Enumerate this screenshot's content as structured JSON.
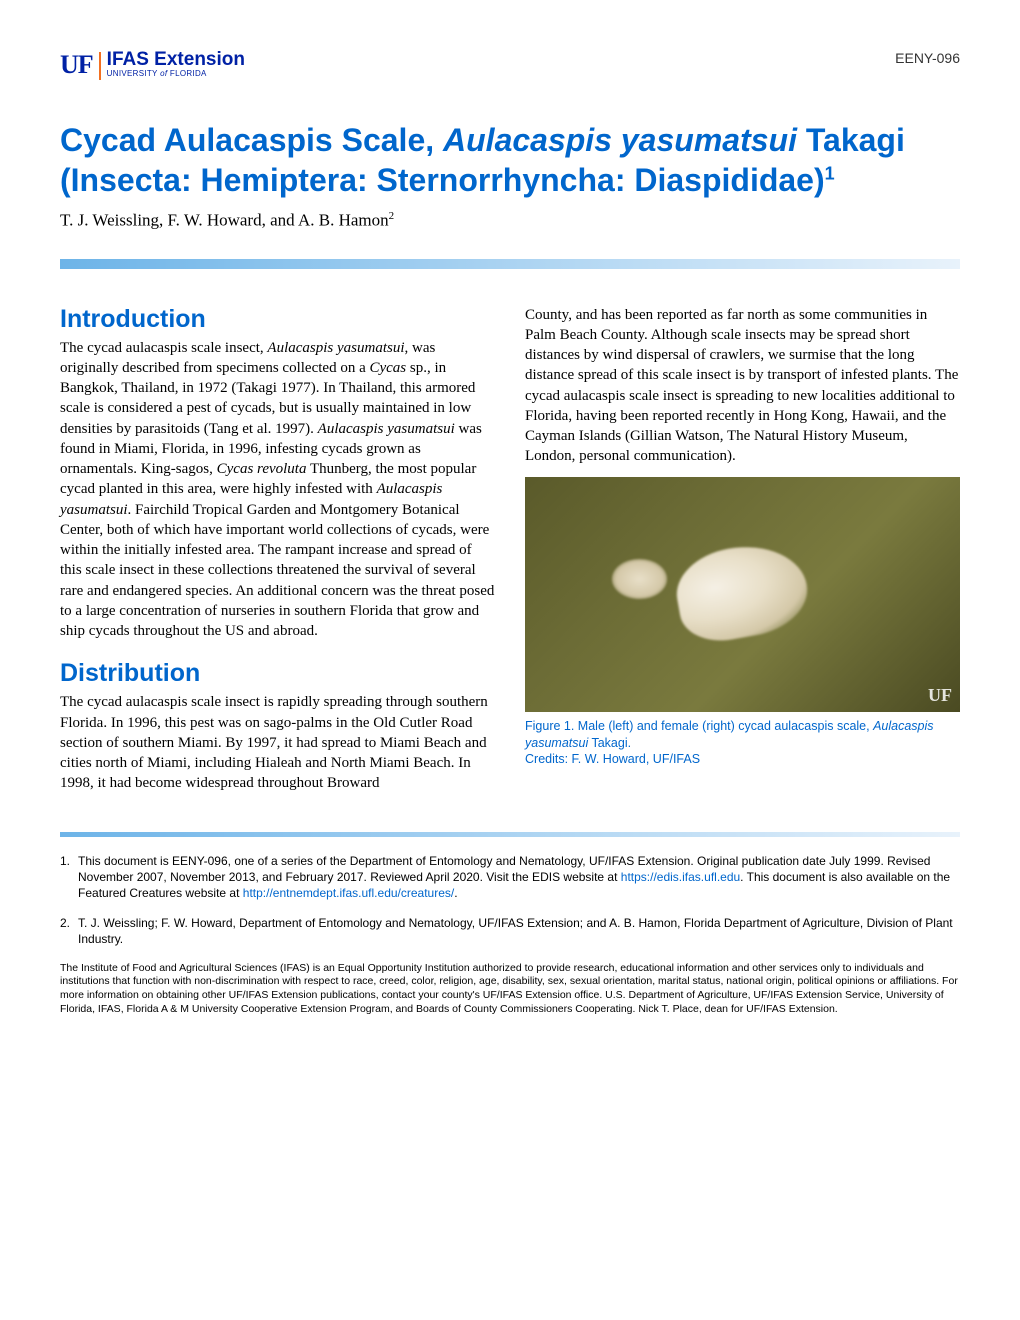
{
  "header": {
    "logo_uf": "UF",
    "logo_ifas": "IFAS Extension",
    "logo_university": "UNIVERSITY",
    "logo_of": "of",
    "logo_florida": "FLORIDA",
    "doc_code": "EENY-096"
  },
  "title_line1": "Cycad Aulacaspis Scale, ",
  "title_italic1": "Aulacaspis yasumatsui",
  "title_line1_end": " Takagi",
  "title_line2": "(Insecta: Hemiptera: Sternorrhyncha: Diaspididae)",
  "title_sup": "1",
  "authors": "T. J. Weissling, F. W. Howard, and A. B. Hamon",
  "authors_sup": "2",
  "sections": {
    "intro_heading": "Introduction",
    "intro_text": "The cycad aulacaspis scale insect, <em>Aulacaspis yasumatsui</em>, was originally described from specimens collected on a <em>Cycas</em> sp., in Bangkok, Thailand, in 1972 (Takagi 1977). In Thailand, this armored scale is considered a pest of cycads, but is usually maintained in low densities by parasitoids (Tang et al. 1997). <em>Aulacaspis yasumatsui</em> was found in Miami, Florida, in 1996, infesting cycads grown as ornamentals. King-sagos, <em>Cycas revoluta</em> Thunberg, the most popular cycad planted in this area, were highly infested with <em>Aulacaspis yasumatsui</em>. Fairchild Tropical Garden and Montgomery Botanical Center, both of which have important world collections of cycads, were within the initially infested area. The rampant increase and spread of this scale insect in these collections threatened the survival of several rare and endangered species. An additional concern was the threat posed to a large concentration of nurseries in southern Florida that grow and ship cycads throughout the US and abroad.",
    "dist_heading": "Distribution",
    "dist_text_col1": "The cycad aulacaspis scale insect is rapidly spreading through southern Florida. In 1996, this pest was on sago-palms in the Old Cutler Road section of southern Miami. By 1997, it had spread to Miami Beach and cities north of Miami, including Hialeah and North Miami Beach. In 1998, it had become widespread throughout Broward",
    "dist_text_col2": "County, and has been reported as far north as some communities in Palm Beach County. Although scale insects may be spread short distances by wind dispersal of crawlers, we surmise that the long distance spread of this scale insect is by transport of infested plants. The cycad aulacaspis scale insect is spreading to new localities additional to Florida, having been reported recently in Hong Kong, Hawaii, and the Cayman Islands (Gillian Watson, The Natural History Museum, London, personal communication)."
  },
  "figure": {
    "watermark": "UF",
    "caption_line1": "Figure 1. Male (left) and female (right) cycad aulacaspis scale, ",
    "caption_italic": "Aulacaspis yasumatsui",
    "caption_line1_end": " Takagi.",
    "caption_credits": "Credits: F. W. Howard, UF/IFAS"
  },
  "footnotes": {
    "fn1_num": "1.",
    "fn1_text": "This document is EENY-096, one of a series of the Department of Entomology and Nematology, UF/IFAS Extension. Original publication date July 1999. Revised November 2007, November 2013, and February 2017. Reviewed April 2020. Visit the EDIS website at ",
    "fn1_link1": "https://edis.ifas.ufl.edu",
    "fn1_text2": ". This document is also available on the Featured Creatures website at ",
    "fn1_link2": "http://entnemdept.ifas.ufl.edu/creatures/",
    "fn1_text3": ".",
    "fn2_num": "2.",
    "fn2_text": "T. J. Weissling; F. W. Howard, Department of Entomology and Nematology, UF/IFAS Extension; and A. B. Hamon, Florida Department of Agriculture, Division of Plant Industry."
  },
  "disclaimer": "The Institute of Food and Agricultural Sciences (IFAS) is an Equal Opportunity Institution authorized to provide research, educational information and other services only to individuals and institutions that function with non-discrimination with respect to race, creed, color, religion, age, disability, sex, sexual orientation, marital status, national origin, political opinions or affiliations. For more information on obtaining other UF/IFAS Extension publications, contact your county's UF/IFAS Extension office. U.S. Department of Agriculture, UF/IFAS Extension Service, University of Florida, IFAS, Florida A & M University Cooperative Extension Program, and Boards of County Commissioners Cooperating. Nick T. Place, dean for UF/IFAS Extension.",
  "colors": {
    "primary_blue": "#0066cc",
    "uf_blue": "#0021a5",
    "uf_orange": "#f37021",
    "gradient_start": "#6db4e8",
    "gradient_end": "#e8f2fb"
  }
}
